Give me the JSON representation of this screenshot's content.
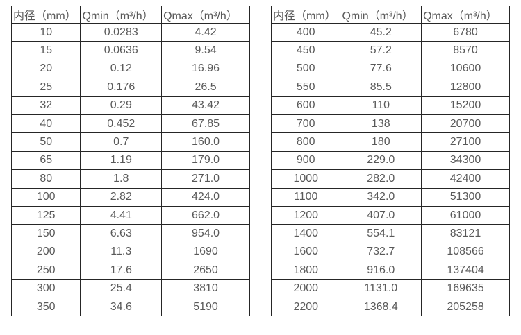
{
  "chart_data": [
    {
      "type": "table",
      "columns": [
        "内径（mm）",
        "Qmin（m³/h）",
        "Qmax（m³/h）"
      ],
      "rows": [
        [
          "10",
          "0.0283",
          "4.42"
        ],
        [
          "15",
          "0.0636",
          "9.54"
        ],
        [
          "20",
          "0.12",
          "16.96"
        ],
        [
          "25",
          "0.176",
          "26.5"
        ],
        [
          "32",
          "0.29",
          "43.42"
        ],
        [
          "40",
          "0.452",
          "67.85"
        ],
        [
          "50",
          "0.7",
          "160.0"
        ],
        [
          "65",
          "1.19",
          "179.0"
        ],
        [
          "80",
          "1.8",
          "271.0"
        ],
        [
          "100",
          "2.82",
          "424.0"
        ],
        [
          "125",
          "4.41",
          "662.0"
        ],
        [
          "150",
          "6.63",
          "954.0"
        ],
        [
          "200",
          "11.3",
          "1690"
        ],
        [
          "250",
          "17.6",
          "2650"
        ],
        [
          "300",
          "25.4",
          "3810"
        ],
        [
          "350",
          "34.6",
          "5190"
        ]
      ]
    },
    {
      "type": "table",
      "columns": [
        "内径（mm）",
        "Qmin（m³/h）",
        "Qmax（m³/h）"
      ],
      "rows": [
        [
          "400",
          "45.2",
          "6780"
        ],
        [
          "450",
          "57.2",
          "8570"
        ],
        [
          "500",
          "77.6",
          "10600"
        ],
        [
          "550",
          "85.5",
          "12800"
        ],
        [
          "600",
          "110",
          "15200"
        ],
        [
          "700",
          "138",
          "20700"
        ],
        [
          "800",
          "180",
          "27100"
        ],
        [
          "900",
          "229.0",
          "34300"
        ],
        [
          "1000",
          "282.0",
          "42400"
        ],
        [
          "1100",
          "342.0",
          "51300"
        ],
        [
          "1200",
          "407.0",
          "61000"
        ],
        [
          "1400",
          "554.1",
          "83121"
        ],
        [
          "1600",
          "732.7",
          "108566"
        ],
        [
          "1800",
          "916.0",
          "137404"
        ],
        [
          "2000",
          "1131.0",
          "169635"
        ],
        [
          "2200",
          "1368.4",
          "205258"
        ]
      ]
    }
  ],
  "colors": {
    "border": "#262626",
    "text": "#595959",
    "background": "#ffffff"
  }
}
